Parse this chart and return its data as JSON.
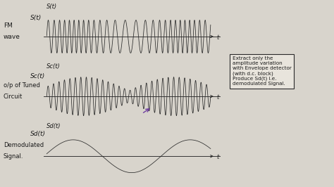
{
  "bg_color": "#d8d4cc",
  "plot_bg": "#e8e4dc",
  "line_color": "#2a2a2a",
  "label1a": "FM",
  "label1b": "wave",
  "label1c": "S(t)",
  "label2a": "Sc(t)",
  "label2b": "o/p of Tuned",
  "label2c": "Circuit",
  "label3a": "Sd(t)",
  "label3b": "Demodulated",
  "label3c": "Signal.",
  "annotation": "Extract only the\namplitude variation\nwith Envelope detector\n(with d.c. block)\nProduce Sd(t) i.e.\ndemodulated Signal.",
  "text_color": "#1a1a1a",
  "purple_color": "#7040a0",
  "frame_color": "#1a1a1a",
  "left_dark": "#3a3535"
}
